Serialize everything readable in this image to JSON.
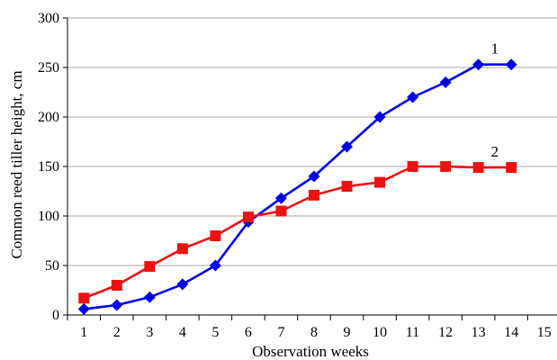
{
  "chart_data": {
    "type": "line",
    "title": "",
    "xlabel": "Observation weeks",
    "ylabel": "Common reed tiller height, cm",
    "x_ticks": [
      1,
      2,
      3,
      4,
      5,
      6,
      7,
      8,
      9,
      10,
      11,
      12,
      13,
      14,
      15
    ],
    "y_ticks": [
      0,
      50,
      100,
      150,
      200,
      250,
      300
    ],
    "xlim": [
      0.5,
      15.5
    ],
    "ylim": [
      0,
      300
    ],
    "grid": "horizontal",
    "legend": "none",
    "series": [
      {
        "name": "1",
        "color": "#0000ee",
        "marker": "diamond",
        "x": [
          1,
          2,
          3,
          4,
          5,
          6,
          7,
          8,
          9,
          10,
          11,
          12,
          13,
          14
        ],
        "values": [
          6,
          10,
          18,
          31,
          50,
          94,
          118,
          140,
          170,
          200,
          220,
          235,
          253,
          253
        ]
      },
      {
        "name": "2",
        "color": "#ee1111",
        "marker": "square",
        "x": [
          1,
          2,
          3,
          4,
          5,
          6,
          7,
          8,
          9,
          10,
          11,
          12,
          13,
          14
        ],
        "values": [
          17,
          30,
          49,
          67,
          80,
          99,
          105,
          121,
          130,
          134,
          150,
          150,
          149,
          149
        ]
      }
    ]
  }
}
